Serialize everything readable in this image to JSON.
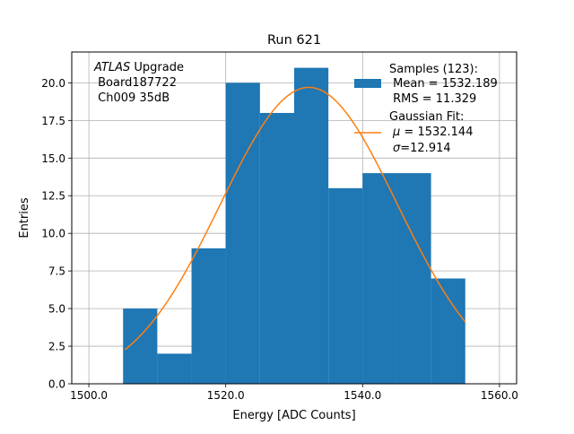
{
  "chart_data": {
    "type": "bar",
    "title": "Run 621",
    "xlabel": "Energy [ADC Counts]",
    "ylabel": "Entries",
    "xlim": [
      1497.5,
      1562.5
    ],
    "ylim": [
      0,
      22.05
    ],
    "grid": true,
    "x_ticks": [
      "1500.0",
      "1520.0",
      "1540.0",
      "1560.0"
    ],
    "x_tick_values": [
      1500,
      1520,
      1540,
      1560
    ],
    "y_ticks": [
      "0.0",
      "2.5",
      "5.0",
      "7.5",
      "10.0",
      "12.5",
      "15.0",
      "17.5",
      "20.0"
    ],
    "y_tick_values": [
      0,
      2.5,
      5,
      7.5,
      10,
      12.5,
      15,
      17.5,
      20
    ],
    "histogram": {
      "bin_edges": [
        1505,
        1510,
        1515,
        1520,
        1525,
        1530,
        1535,
        1540,
        1545,
        1550,
        1555
      ],
      "counts": [
        5,
        2,
        9,
        20,
        18,
        21,
        13,
        14,
        14,
        7
      ],
      "color": "#1f77b4"
    },
    "fit": {
      "mu": 1532.144,
      "sigma": 12.914,
      "amplitude": 19.7,
      "x_range": [
        1505.3,
        1555.0
      ],
      "color": "#ff7f0e"
    },
    "annotation": {
      "italic": "ATLAS",
      "line1_rest": " Upgrade",
      "line2": " Board187722",
      "line3": " Ch009 35dB"
    },
    "legend": {
      "position": "top-right",
      "samples_label": "Samples (123):",
      "samples_mean": " Mean = 1532.189",
      "samples_rms": " RMS = 11.329",
      "fit_label": "Gaussian Fit:",
      "fit_mu_symbol": "μ",
      "fit_mu_text": " = 1532.144",
      "fit_sigma_symbol": "σ",
      "fit_sigma_text": "=12.914"
    }
  }
}
